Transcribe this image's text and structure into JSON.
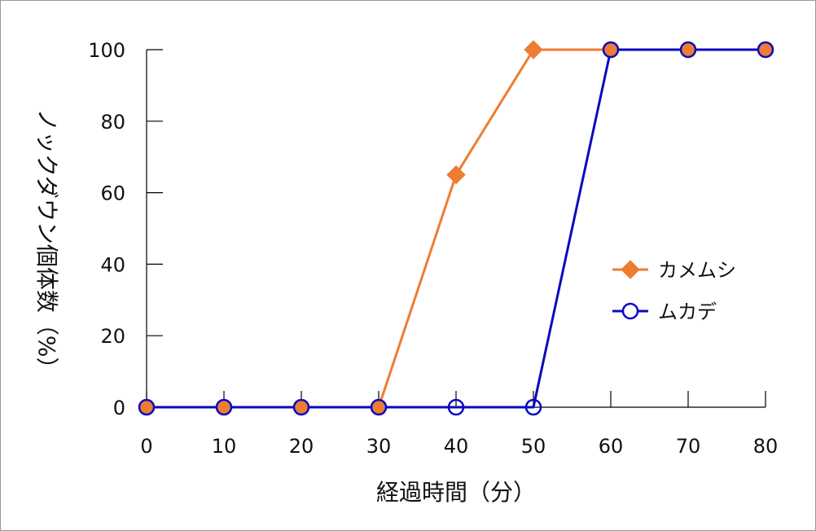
{
  "chart_data": {
    "type": "line",
    "title": "",
    "xlabel": "経過時間（分）",
    "ylabel": "ノックダウン個体数（%）",
    "x": [
      0,
      10,
      20,
      30,
      40,
      50,
      60,
      70,
      80
    ],
    "xlim": [
      0,
      80
    ],
    "ylim": [
      0,
      100
    ],
    "xticks": [
      "0",
      "10",
      "20",
      "30",
      "40",
      "50",
      "60",
      "70",
      "80"
    ],
    "yticks": [
      "0",
      "20",
      "40",
      "60",
      "80",
      "100"
    ],
    "grid": false,
    "legend_position": "right",
    "series": [
      {
        "name": "カメムシ",
        "values": [
          0,
          0,
          0,
          0,
          65,
          100,
          100,
          100,
          100
        ],
        "color": "#ED7D31",
        "marker": "diamond"
      },
      {
        "name": "ムカデ",
        "values": [
          0,
          0,
          0,
          0,
          0,
          0,
          100,
          100,
          100
        ],
        "color": "#0A0ABF",
        "marker": "circle-open"
      }
    ]
  }
}
